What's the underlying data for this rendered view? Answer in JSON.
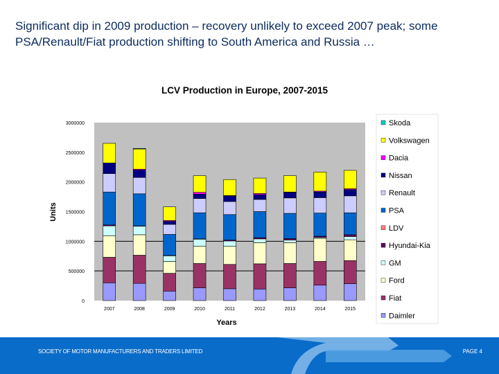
{
  "headline": "Significant dip in 2009 production – recovery unlikely to exceed 2007 peak; some PSA/Renault/Fiat production shifting to South America and Russia …",
  "footer": {
    "organisation": "SOCIETY OF MOTOR MANUFACTURERS AND TRADERS LIMITED",
    "page": "PAGE 4",
    "color": "#0a6cc9"
  },
  "chart_data": {
    "type": "bar",
    "stacked": true,
    "title": "LCV Production in Europe, 2007-2015",
    "xlabel": "Years",
    "ylabel": "Units",
    "ylim": [
      0,
      3000000
    ],
    "yticks": [
      "0",
      "500000",
      "1000000",
      "1500000",
      "2000000",
      "2500000",
      "3000000"
    ],
    "grid": "horizontal at 500000 and 1000000",
    "legend": "right",
    "categories": [
      "2007",
      "2008",
      "2009",
      "2010",
      "2011",
      "2012",
      "2013",
      "2014",
      "2015"
    ],
    "series": [
      {
        "name": "Daimler",
        "color": "#9999ff",
        "values": [
          300000,
          290000,
          160000,
          215000,
          200000,
          195000,
          215000,
          260000,
          285000
        ]
      },
      {
        "name": "Fiat",
        "color": "#993366",
        "values": [
          430000,
          475000,
          300000,
          410000,
          410000,
          425000,
          410000,
          400000,
          390000
        ]
      },
      {
        "name": "Ford",
        "color": "#ffffcc",
        "values": [
          360000,
          345000,
          200000,
          290000,
          305000,
          355000,
          350000,
          390000,
          350000
        ]
      },
      {
        "name": "GM",
        "color": "#ccffff",
        "values": [
          170000,
          145000,
          95000,
          120000,
          90000,
          65000,
          45000,
          15000,
          55000
        ]
      },
      {
        "name": "Hyundai-Kia",
        "color": "#660066",
        "values": [
          15000,
          5000,
          5000,
          5000,
          15000,
          20000,
          25000,
          20000,
          30000
        ]
      },
      {
        "name": "LDV",
        "color": "#ff8080",
        "values": [
          0,
          0,
          0,
          0,
          0,
          0,
          0,
          0,
          0
        ]
      },
      {
        "name": "PSA",
        "color": "#0066cc",
        "values": [
          555000,
          540000,
          355000,
          440000,
          430000,
          440000,
          425000,
          390000,
          370000
        ]
      },
      {
        "name": "Renault",
        "color": "#ccccff",
        "values": [
          310000,
          275000,
          170000,
          240000,
          220000,
          205000,
          260000,
          260000,
          285000
        ]
      },
      {
        "name": "Nissan",
        "color": "#000080",
        "values": [
          180000,
          125000,
          50000,
          75000,
          95000,
          80000,
          95000,
          95000,
          105000
        ]
      },
      {
        "name": "Dacia",
        "color": "#ff00ff",
        "values": [
          0,
          15000,
          15000,
          30000,
          5000,
          20000,
          5000,
          15000,
          15000
        ]
      },
      {
        "name": "Volkswagen",
        "color": "#ffff00",
        "values": [
          330000,
          340000,
          230000,
          280000,
          270000,
          260000,
          275000,
          320000,
          310000
        ]
      },
      {
        "name": "Skoda",
        "color": "#00cccc",
        "values": [
          0,
          10000,
          0,
          0,
          0,
          0,
          0,
          0,
          0
        ]
      }
    ]
  }
}
